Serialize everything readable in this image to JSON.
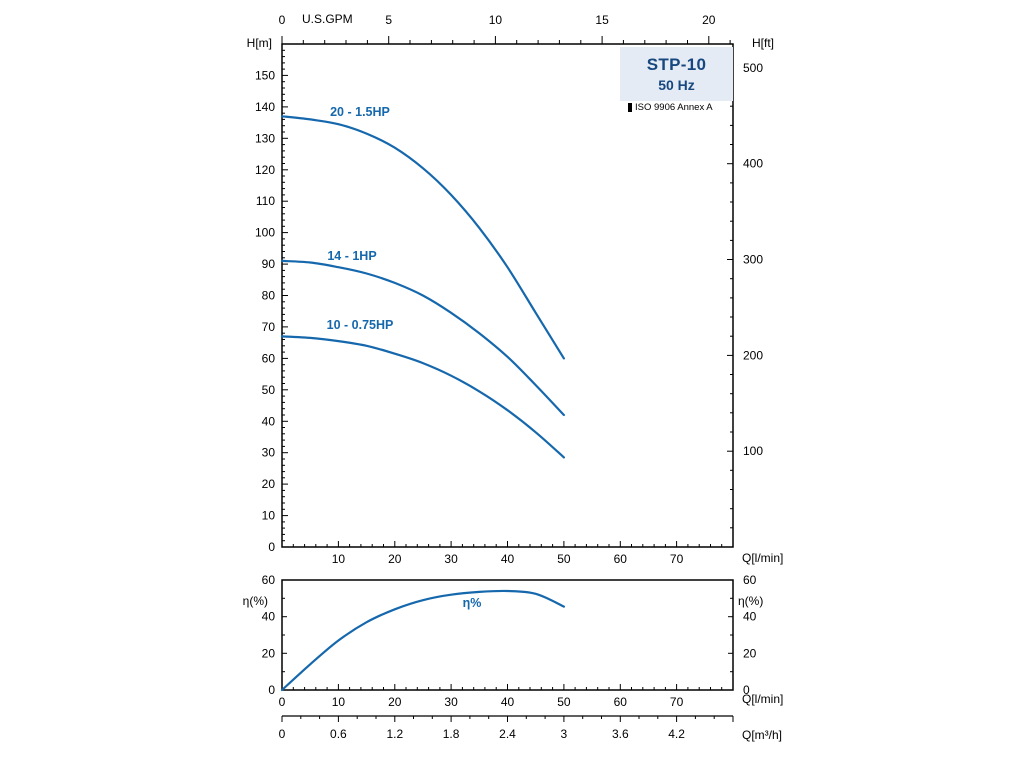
{
  "title_box": {
    "model": "STP-10",
    "frequency": "50 Hz",
    "standard": "ISO 9906 Annex A"
  },
  "colors": {
    "curve": "#1668ad",
    "label": "#1668ad",
    "title_text": "#17477f",
    "title_bg": "#e4ebf5",
    "axis": "#000000"
  },
  "chart_data": [
    {
      "type": "line",
      "title": "STP-10",
      "subtitle": "50 Hz",
      "standard": "ISO 9906 Annex A",
      "xlabel": "Q[l/min]",
      "ylabel": "H[m]",
      "y2label": "H[ft]",
      "x2label": "U.S.GPM",
      "xlim": [
        0,
        80
      ],
      "ylim": [
        0,
        160
      ],
      "grid": false,
      "legend": "none",
      "x": [
        0,
        5,
        10,
        15,
        20,
        25,
        30,
        35,
        40,
        45,
        50
      ],
      "series": [
        {
          "name": "20 - 1.5HP",
          "values": [
            137,
            136,
            134.5,
            131.5,
            127,
            120.5,
            112,
            101.5,
            89,
            74.5,
            60
          ]
        },
        {
          "name": "14 - 1HP",
          "values": [
            91,
            90.5,
            89,
            87,
            84,
            80,
            74.5,
            68,
            60.5,
            51.5,
            42
          ]
        },
        {
          "name": "10 - 0.75HP",
          "values": [
            67,
            66.5,
            65.5,
            64,
            61.5,
            58.5,
            54.5,
            49.5,
            43.5,
            36.5,
            28.5
          ]
        }
      ],
      "x_ticks": [
        10,
        20,
        30,
        40,
        50,
        60,
        70
      ],
      "y_ticks": [
        0,
        10,
        20,
        30,
        40,
        50,
        60,
        70,
        80,
        90,
        100,
        110,
        120,
        130,
        140,
        150
      ],
      "y2_ticks": [
        100,
        200,
        300,
        400,
        500
      ],
      "x2_ticks": [
        0,
        5,
        10,
        15,
        20
      ],
      "annotations": [
        {
          "label": "20 - 1.5HP",
          "x": 14,
          "y": 138
        },
        {
          "label": "14 - 1HP",
          "x": 12.5,
          "y": 92
        },
        {
          "label": "10 - 0.75HP",
          "x": 14,
          "y": 70
        }
      ]
    },
    {
      "type": "line",
      "title": "Efficiency",
      "xlabel": "Q[l/min]",
      "ylabel": "η(%)",
      "y2label": "η(%)",
      "x3label": "Q[m³/h]",
      "xlim": [
        0,
        80
      ],
      "ylim": [
        0,
        60
      ],
      "grid": false,
      "legend": "none",
      "x": [
        0,
        5,
        10,
        15,
        20,
        25,
        30,
        35,
        40,
        45,
        50
      ],
      "series": [
        {
          "name": "η%",
          "values": [
            0,
            14,
            27,
            37,
            44,
            49,
            52,
            53.5,
            54,
            52.5,
            45.5
          ]
        }
      ],
      "x_ticks": [
        0,
        10,
        20,
        30,
        40,
        50,
        60,
        70
      ],
      "y_ticks": [
        0,
        20,
        40,
        60
      ],
      "x3_ticks": [
        0,
        0.6,
        1.2,
        1.8,
        2.4,
        3,
        3.6,
        4.2
      ],
      "annotations": [
        {
          "label": "η%",
          "x": 34,
          "y": 46.5
        }
      ]
    }
  ]
}
